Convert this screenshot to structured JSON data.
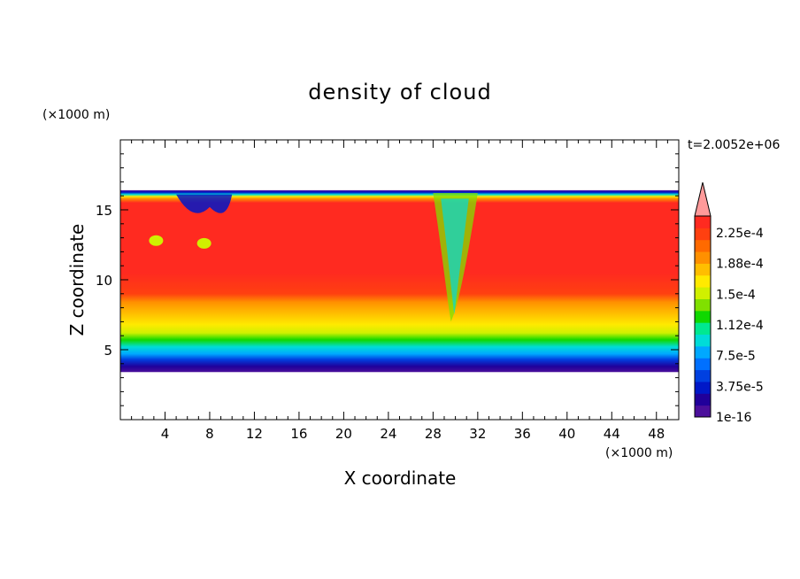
{
  "chart_data": {
    "type": "heatmap",
    "title": "density of cloud",
    "xlabel": "X coordinate",
    "ylabel": "Z coordinate",
    "x_unit": "(×1000 m)",
    "y_unit": "(×1000 m)",
    "time_label": "t=2.0052e+06",
    "xlim": [
      0,
      50
    ],
    "ylim": [
      0,
      20
    ],
    "x_ticks": [
      4,
      8,
      12,
      16,
      20,
      24,
      28,
      32,
      36,
      40,
      44,
      48
    ],
    "y_ticks": [
      5,
      10,
      15
    ],
    "grid": false,
    "colorbar": {
      "labels": [
        "1e-16",
        "3.75e-5",
        "7.5e-5",
        "1.12e-4",
        "1.5e-4",
        "1.88e-4",
        "2.25e-4"
      ],
      "colors": [
        "#4b0f9b",
        "#20009a",
        "#0018c8",
        "#0040e0",
        "#0070ff",
        "#00a8ff",
        "#00dcd8",
        "#00e890",
        "#10d800",
        "#80e000",
        "#d0f000",
        "#ffea00",
        "#ffbe00",
        "#ff9000",
        "#ff6a00",
        "#ff4010",
        "#ff2a20"
      ],
      "extend_color": "#ff9a9a"
    },
    "cloud_layer": {
      "base_km": 3.4,
      "top_km": 16.4,
      "core_bottom_km": 9.0,
      "core_top_km": 15.8,
      "downdraft_x_km": [
        28,
        32
      ],
      "eddies_x_km": [
        4,
        10
      ]
    }
  }
}
